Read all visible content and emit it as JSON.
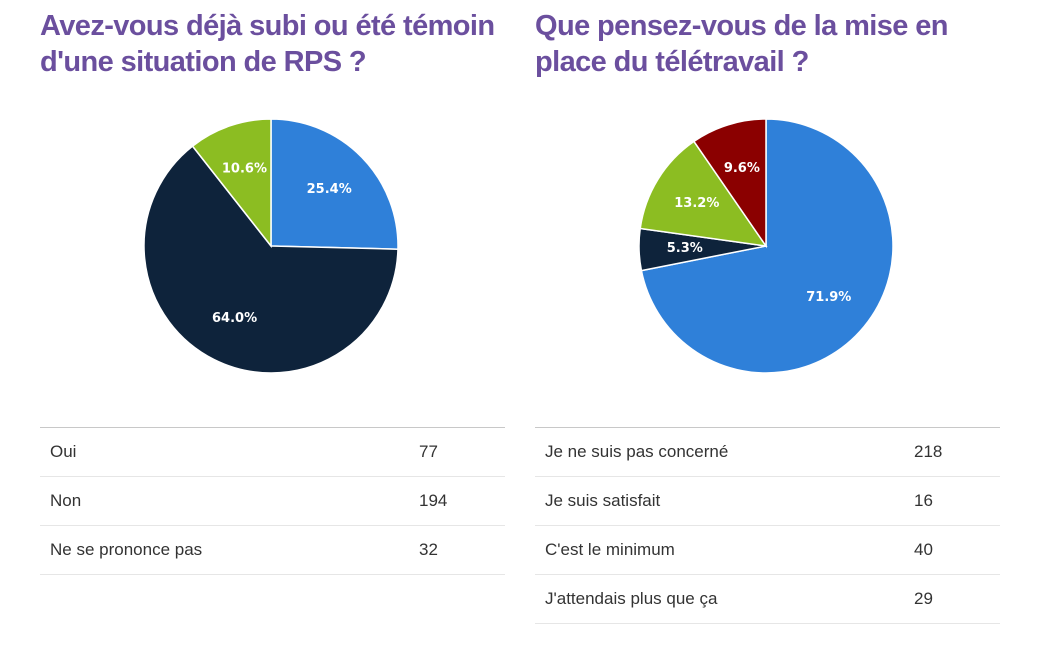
{
  "chart_data": [
    {
      "type": "pie",
      "title": "Avez-vous déjà subi ou été témoin d'une situation de RPS ?",
      "values": [
        25.4,
        64.0,
        10.6
      ],
      "value_labels": [
        "25.4%",
        "64.0%",
        "10.6%"
      ],
      "colors": [
        "#2f80d9",
        "#0e233b",
        "#8cbd22"
      ],
      "table": {
        "rows": [
          [
            "Oui",
            77
          ],
          [
            "Non",
            194
          ],
          [
            "Ne se prononce pas",
            32
          ]
        ]
      }
    },
    {
      "type": "pie",
      "title": "Que pensez-vous de la mise en place du télétravail ?",
      "values": [
        71.9,
        5.3,
        13.2,
        9.6
      ],
      "value_labels": [
        "71.9%",
        "5.3%",
        "13.2%",
        "9.6%"
      ],
      "colors": [
        "#2f80d9",
        "#0e233b",
        "#8cbd22",
        "#8b0000"
      ],
      "table": {
        "rows": [
          [
            "Je ne suis pas concerné",
            218
          ],
          [
            "Je suis satisfait",
            16
          ],
          [
            "C'est le minimum",
            40
          ],
          [
            "J'attendais plus que ça",
            29
          ]
        ]
      }
    }
  ]
}
